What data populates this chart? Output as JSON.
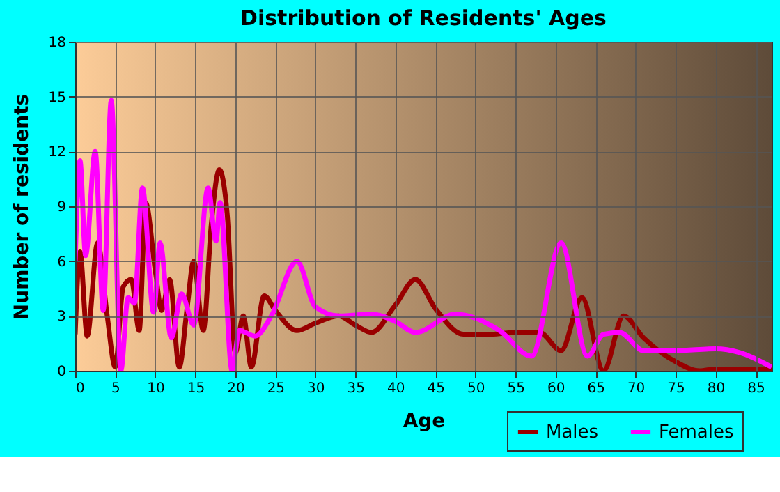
{
  "chart_data": {
    "type": "line",
    "title": "Distribution of Residents' Ages",
    "xlabel": "Age",
    "ylabel": "Number of residents",
    "xlim": [
      0,
      87
    ],
    "xticks": [
      0,
      5,
      10,
      15,
      20,
      25,
      30,
      35,
      40,
      45,
      50,
      55,
      60,
      65,
      70,
      75,
      80,
      85
    ],
    "ylim": [
      0,
      18
    ],
    "yticks": [
      0,
      3,
      6,
      9,
      12,
      15,
      18
    ],
    "grid": true,
    "legend": "bottom right",
    "marker": "none",
    "line_style": "solid",
    "series": [
      {
        "name": "Males",
        "color": "#990000",
        "x": [
          0,
          0.6,
          1.5,
          2.8,
          4,
          5,
          6,
          7,
          8,
          8.8,
          10,
          10.8,
          11.8,
          13,
          14,
          14.8,
          16,
          17,
          18,
          19,
          20,
          21,
          22,
          23.6,
          25,
          27.7,
          30,
          32.9,
          35,
          37,
          40,
          42.5,
          45,
          48.5,
          52,
          55,
          58,
          60.7,
          63.3,
          66,
          68.5,
          71,
          75,
          78,
          80,
          84,
          87
        ],
        "values": [
          2,
          6.5,
          1.9,
          7,
          3,
          0.2,
          4.6,
          5,
          2.2,
          9.2,
          5.5,
          3.3,
          5,
          0.2,
          3.5,
          6,
          2.2,
          8,
          11,
          8.5,
          1,
          3,
          0.2,
          4.1,
          3.3,
          2.2,
          2.6,
          3,
          2.5,
          2.1,
          3.6,
          5,
          3.4,
          2,
          2,
          2.1,
          2.1,
          1.1,
          4,
          0,
          3,
          1.8,
          0.5,
          0,
          0.1,
          0.1,
          0.1
        ]
      },
      {
        "name": "Females",
        "color": "#ff00ff",
        "x": [
          0,
          0.6,
          1.3,
          2.5,
          3.5,
          4.5,
          5.7,
          6.6,
          7.4,
          8.4,
          9.8,
          10.6,
          12,
          13.3,
          14.8,
          16.6,
          17.6,
          18.1,
          19.6,
          20.5,
          22.5,
          24.5,
          27.7,
          30,
          33,
          37,
          40,
          42.5,
          47.5,
          53,
          57,
          60.7,
          64,
          66,
          68,
          71,
          75,
          80,
          83,
          87
        ],
        "values": [
          6,
          11.5,
          6.3,
          12,
          3.3,
          14.8,
          0,
          4,
          3.7,
          10,
          3.2,
          7,
          1.8,
          4.2,
          2.5,
          10,
          7.1,
          9.2,
          0,
          2.2,
          1.9,
          3,
          6,
          3.5,
          3,
          3.1,
          2.7,
          2.1,
          3.1,
          2.2,
          0.8,
          7,
          0.8,
          2,
          2.1,
          1.1,
          1.1,
          1.2,
          1,
          0.2
        ]
      }
    ]
  }
}
